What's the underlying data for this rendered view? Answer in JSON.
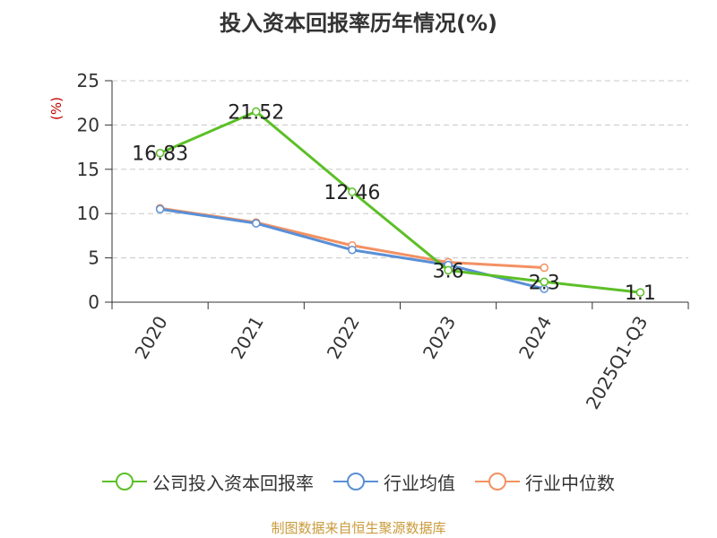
{
  "chart_data": {
    "type": "line",
    "title": "投入资本回报率历年情况(%)",
    "ylabel": "(%)",
    "xlabel": "",
    "categories": [
      "2020",
      "2021",
      "2022",
      "2023",
      "2024",
      "2025Q1-Q3"
    ],
    "ylim": [
      0,
      25
    ],
    "yticks": [
      0,
      5,
      10,
      15,
      20,
      25
    ],
    "grid": true,
    "legend_position": "bottom",
    "series": [
      {
        "name": "公司投入资本回报率",
        "color": "#5cbf27",
        "values": [
          16.83,
          21.52,
          12.46,
          3.6,
          2.3,
          1.1
        ],
        "labels": [
          "16.83",
          "21.52",
          "12.46",
          "3.6",
          "2.3",
          "1.1"
        ]
      },
      {
        "name": "行业均值",
        "color": "#5a8fd6",
        "values": [
          10.5,
          8.9,
          5.9,
          4.2,
          1.5,
          null
        ]
      },
      {
        "name": "行业中位数",
        "color": "#f39162",
        "values": [
          10.6,
          9.0,
          6.4,
          4.5,
          3.9,
          null
        ]
      }
    ]
  },
  "source": "制图数据来自恒生聚源数据库"
}
